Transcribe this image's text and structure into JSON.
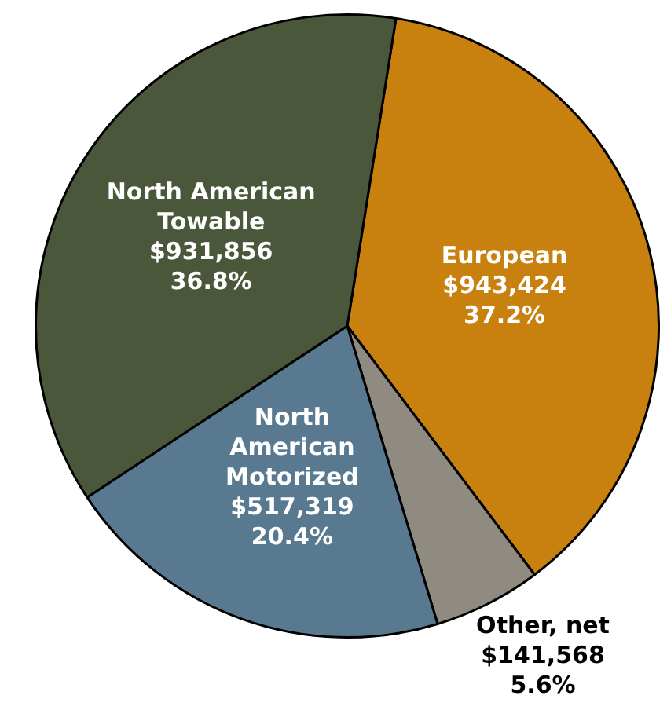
{
  "chart_data": {
    "type": "pie",
    "categories": [
      "European",
      "Other, net",
      "North American Motorized",
      "North American Towable"
    ],
    "values": [
      943424,
      141568,
      517319,
      931856
    ],
    "colors": [
      "#c8800f",
      "#8f8b80",
      "#58798f",
      "#4b573a"
    ],
    "value_labels": [
      "$943,424\n37.2%",
      "$141,568\n5.6%",
      "$517,319\n20.4%",
      "$931,856\n36.8%"
    ],
    "legend": false
  }
}
